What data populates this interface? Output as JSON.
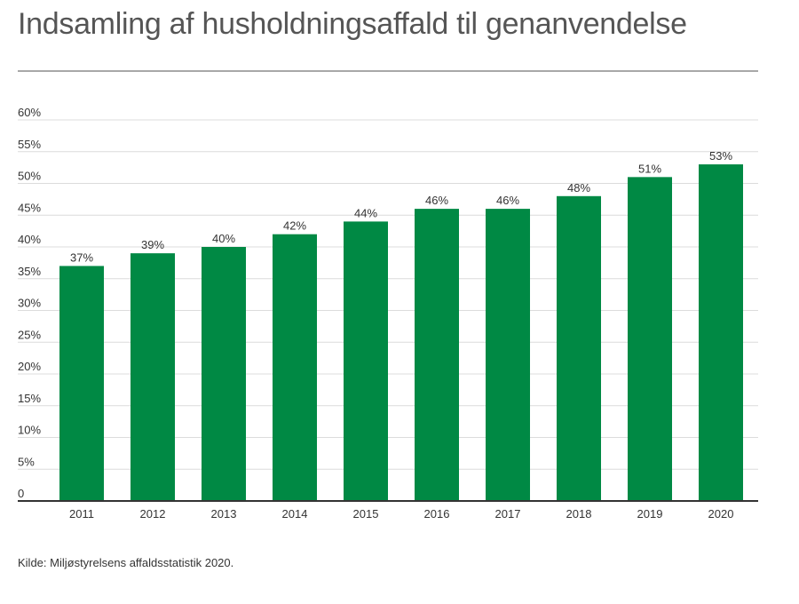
{
  "title": "Indsamling af husholdningsaffald til genanvendelse",
  "source": "Kilde: Miljøstyrelsens affaldsstatistik 2020.",
  "colors": {
    "bar": "#008944",
    "grid": "#dcdcdc",
    "axis": "#333333",
    "rule": "#a8a8a8"
  },
  "chart_data": {
    "type": "bar",
    "title": "Indsamling af husholdningsaffald til genanvendelse",
    "categories": [
      "2011",
      "2012",
      "2013",
      "2014",
      "2015",
      "2016",
      "2017",
      "2018",
      "2019",
      "2020"
    ],
    "values": [
      37,
      39,
      40,
      42,
      44,
      46,
      46,
      48,
      51,
      53
    ],
    "data_labels": [
      "37%",
      "39%",
      "40%",
      "42%",
      "44%",
      "46%",
      "46%",
      "48%",
      "51%",
      "53%"
    ],
    "yticks": [
      0,
      5,
      10,
      15,
      20,
      25,
      30,
      35,
      40,
      45,
      50,
      55,
      60
    ],
    "ytick_labels": [
      "0",
      "5%",
      "10%",
      "15%",
      "20%",
      "25%",
      "30%",
      "35%",
      "40%",
      "45%",
      "50%",
      "55%",
      "60%"
    ],
    "ylim": [
      0,
      60
    ],
    "xlabel": "",
    "ylabel": "",
    "grid": true,
    "legend": "none"
  }
}
